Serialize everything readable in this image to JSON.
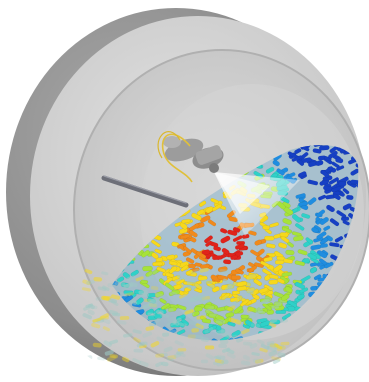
{
  "scene": {
    "subject": "coating-drum-simulation",
    "palette": {
      "background": "#ffffff",
      "drum_outer": "#8f8f8f",
      "drum_face": "#cfcfcf",
      "drum_inner": "#bdbdbd",
      "pan_interior": "#d9d9d9",
      "spray": "#f4f4f0",
      "nozzle": "#9a9a9a",
      "wire": "#e1c23a",
      "lance": "#6f6f78"
    },
    "particle_colors": {
      "hot": "#e0241b",
      "warm": "#f08a1c",
      "mid": "#f6d81c",
      "cool_mid": "#a6e23a",
      "cool": "#2fd1c8",
      "cold": "#1f8de0",
      "coldest": "#1640c4",
      "faded": "#9ec9c4"
    }
  }
}
